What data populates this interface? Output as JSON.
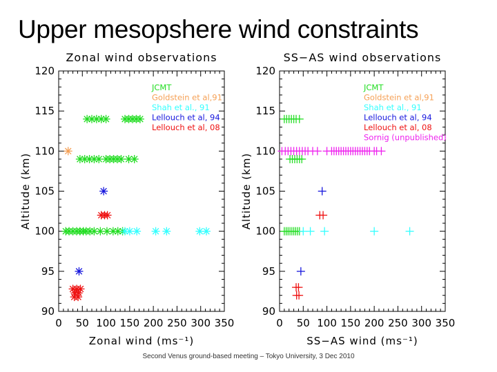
{
  "slide": {
    "title": "Upper mesopshere wind constraints",
    "footer": "Second Venus ground-based meeting – Tokyo University, 3 Dec 2010"
  },
  "chart_data": [
    {
      "type": "scatter",
      "title": "Zonal wind observations",
      "xlabel": "Zonal wind (ms⁻¹)",
      "ylabel": "Altitude (km)",
      "xlim": [
        0,
        350
      ],
      "ylim": [
        90,
        120
      ],
      "xticks": [
        "0",
        "50",
        "100",
        "150",
        "200",
        "250",
        "300",
        "350"
      ],
      "yticks": [
        "90",
        "95",
        "100",
        "105",
        "110",
        "115",
        "120"
      ],
      "marker": "asterisk",
      "series": [
        {
          "name": "JCMT",
          "color": "#22dd22",
          "points": [
            [
              60,
              114
            ],
            [
              70,
              114
            ],
            [
              80,
              114
            ],
            [
              90,
              114
            ],
            [
              100,
              114
            ],
            [
              140,
              114
            ],
            [
              148,
              114
            ],
            [
              156,
              114
            ],
            [
              164,
              114
            ],
            [
              172,
              114
            ],
            [
              45,
              109
            ],
            [
              55,
              109
            ],
            [
              65,
              109
            ],
            [
              75,
              109
            ],
            [
              85,
              109
            ],
            [
              100,
              109
            ],
            [
              108,
              109
            ],
            [
              116,
              109
            ],
            [
              124,
              109
            ],
            [
              132,
              109
            ],
            [
              148,
              109
            ],
            [
              160,
              109
            ],
            [
              15,
              100
            ],
            [
              22,
              100
            ],
            [
              30,
              100
            ],
            [
              38,
              100
            ],
            [
              45,
              100
            ],
            [
              52,
              100
            ],
            [
              58,
              100
            ],
            [
              66,
              100
            ],
            [
              75,
              100
            ],
            [
              88,
              100
            ],
            [
              102,
              100
            ],
            [
              115,
              100
            ],
            [
              125,
              100
            ],
            [
              135,
              100
            ]
          ]
        },
        {
          "name": "Goldstein et al,91",
          "color": "#f5a055",
          "points": [
            [
              20,
              110
            ]
          ]
        },
        {
          "name": "Shah et al., 91",
          "color": "#33ffff",
          "points": [
            [
              140,
              100
            ],
            [
              150,
              100
            ],
            [
              165,
              100
            ],
            [
              205,
              100
            ],
            [
              228,
              100
            ],
            [
              298,
              100
            ],
            [
              312,
              100
            ]
          ]
        },
        {
          "name": "Lellouch et al, 94",
          "color": "#1515dd",
          "points": [
            [
              95,
              105
            ],
            [
              43,
              95
            ]
          ]
        },
        {
          "name": "Lellouch et al, 08",
          "color": "#ee1111",
          "points": [
            [
              90,
              102
            ],
            [
              97,
              102
            ],
            [
              103,
              102
            ],
            [
              30,
              92.8
            ],
            [
              38,
              92.8
            ],
            [
              46,
              92.8
            ],
            [
              34,
              92.3
            ],
            [
              42,
              92.3
            ],
            [
              33,
              91.8
            ],
            [
              41,
              91.8
            ]
          ]
        }
      ]
    },
    {
      "type": "scatter",
      "title": "SS−AS wind observations",
      "xlabel": "SS−AS wind (ms⁻¹)",
      "ylabel": "Altitude (km)",
      "xlim": [
        0,
        350
      ],
      "ylim": [
        90,
        120
      ],
      "xticks": [
        "0",
        "50",
        "100",
        "150",
        "200",
        "250",
        "300",
        "350"
      ],
      "yticks": [
        "90",
        "95",
        "100",
        "105",
        "110",
        "115",
        "120"
      ],
      "marker": "plus",
      "series": [
        {
          "name": "JCMT",
          "color": "#22dd22",
          "points": [
            [
              10,
              114
            ],
            [
              15,
              114
            ],
            [
              20,
              114
            ],
            [
              25,
              114
            ],
            [
              30,
              114
            ],
            [
              35,
              114
            ],
            [
              42,
              114
            ],
            [
              22,
              109
            ],
            [
              27,
              109
            ],
            [
              32,
              109
            ],
            [
              37,
              109
            ],
            [
              42,
              109
            ],
            [
              47,
              109
            ],
            [
              10,
              100
            ],
            [
              14,
              100
            ],
            [
              18,
              100
            ],
            [
              22,
              100
            ],
            [
              26,
              100
            ],
            [
              30,
              100
            ],
            [
              34,
              100
            ],
            [
              38,
              100
            ],
            [
              42,
              100
            ]
          ]
        },
        {
          "name": "Goldstein et al,91",
          "color": "#f5a055",
          "points": []
        },
        {
          "name": "Shah et al., 91",
          "color": "#33ffff",
          "points": [
            [
              50,
              100
            ],
            [
              65,
              100
            ],
            [
              95,
              100
            ],
            [
              200,
              100
            ],
            [
              275,
              100
            ]
          ]
        },
        {
          "name": "Lellouch et al, 94",
          "color": "#1515dd",
          "points": [
            [
              90,
              105
            ],
            [
              45,
              95
            ]
          ]
        },
        {
          "name": "Lellouch et al, 08",
          "color": "#ee1111",
          "points": [
            [
              85,
              102
            ],
            [
              92,
              102
            ],
            [
              35,
              93
            ],
            [
              40,
              93
            ],
            [
              36,
              92
            ],
            [
              41,
              92
            ]
          ]
        },
        {
          "name": "Sornig (unpublished)",
          "color": "#ee22ee",
          "points": [
            [
              5,
              110
            ],
            [
              12,
              110
            ],
            [
              18,
              110
            ],
            [
              24,
              110
            ],
            [
              30,
              110
            ],
            [
              36,
              110
            ],
            [
              42,
              110
            ],
            [
              48,
              110
            ],
            [
              54,
              110
            ],
            [
              60,
              110
            ],
            [
              70,
              110
            ],
            [
              80,
              110
            ],
            [
              100,
              110
            ],
            [
              110,
              110
            ],
            [
              115,
              110
            ],
            [
              120,
              110
            ],
            [
              125,
              110
            ],
            [
              130,
              110
            ],
            [
              135,
              110
            ],
            [
              140,
              110
            ],
            [
              145,
              110
            ],
            [
              150,
              110
            ],
            [
              155,
              110
            ],
            [
              160,
              110
            ],
            [
              165,
              110
            ],
            [
              170,
              110
            ],
            [
              175,
              110
            ],
            [
              180,
              110
            ],
            [
              185,
              110
            ],
            [
              190,
              110
            ],
            [
              200,
              110
            ],
            [
              205,
              110
            ],
            [
              215,
              110
            ]
          ]
        }
      ]
    }
  ]
}
